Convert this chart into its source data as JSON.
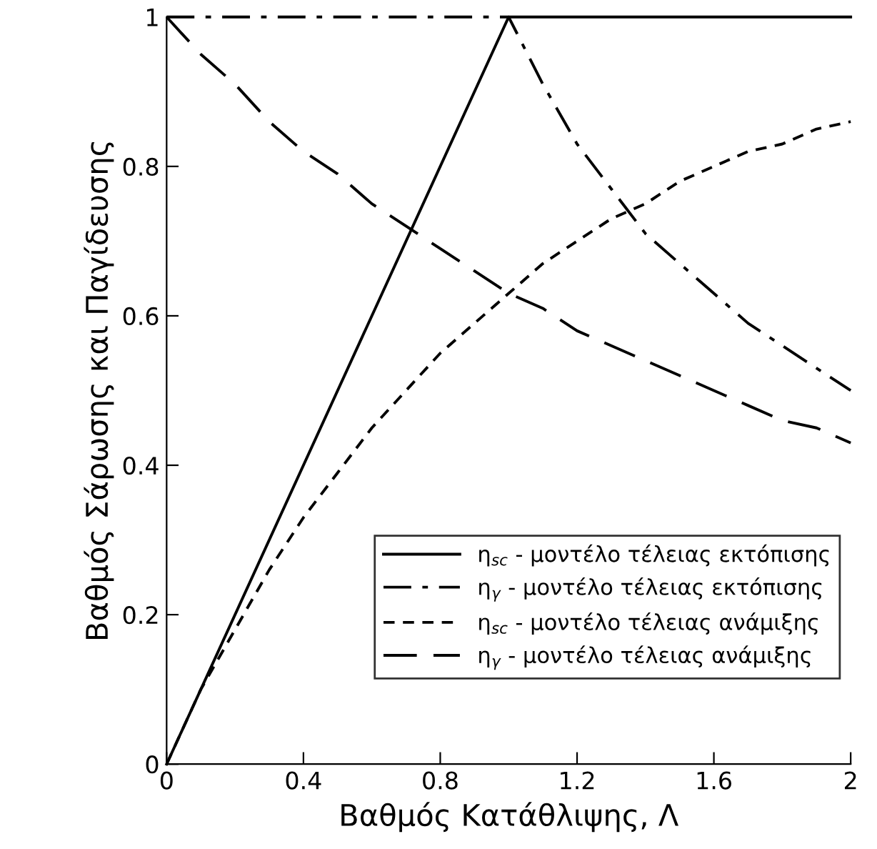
{
  "chart_data": {
    "type": "line",
    "xlabel": "Βαθμός Κατάθλιψης, Λ",
    "ylabel": "Βαθμός Σάρωσης και Παγίδευσης",
    "xlim": [
      0,
      2
    ],
    "ylim": [
      0,
      1
    ],
    "xticks": [
      0,
      0.4,
      0.8,
      1.2,
      1.6,
      2
    ],
    "yticks": [
      0,
      0.2,
      0.4,
      0.6,
      0.8,
      1
    ],
    "grid": false,
    "legend": "bottom right",
    "marker": "none",
    "series": [
      {
        "name": "η$_{sc}$ - μοντέλο τέλειας εκτόπισης",
        "color": "#000000",
        "line_style": "solid",
        "x": [
          0,
          1,
          2
        ],
        "values": [
          0,
          1,
          1
        ]
      },
      {
        "name": "η$_{γ}$ - μοντέλο τέλειας εκτόπισης",
        "color": "#000000",
        "line_style": "dashdot",
        "x": [
          0,
          1,
          1.1,
          1.2,
          1.3,
          1.4,
          1.5,
          1.6,
          1.7,
          1.8,
          1.9,
          2
        ],
        "values": [
          1,
          1,
          0.91,
          0.83,
          0.77,
          0.71,
          0.67,
          0.63,
          0.59,
          0.56,
          0.53,
          0.5
        ]
      },
      {
        "name": "η$_{sc}$ - μοντέλο τέλειας ανάμιξης",
        "color": "#000000",
        "line_style": "dashed",
        "x": [
          0,
          0.1,
          0.2,
          0.3,
          0.4,
          0.5,
          0.6,
          0.7,
          0.8,
          0.9,
          1,
          1.1,
          1.2,
          1.3,
          1.4,
          1.5,
          1.6,
          1.7,
          1.8,
          1.9,
          2
        ],
        "values": [
          0,
          0.1,
          0.18,
          0.26,
          0.33,
          0.39,
          0.45,
          0.5,
          0.55,
          0.59,
          0.63,
          0.67,
          0.7,
          0.73,
          0.75,
          0.78,
          0.8,
          0.82,
          0.83,
          0.85,
          0.86
        ]
      },
      {
        "name": "η$_{γ}$ - μοντέλο τέλειας ανάμιξης",
        "color": "#000000",
        "line_style": "longdashed",
        "x": [
          0,
          0.1,
          0.2,
          0.3,
          0.4,
          0.5,
          0.6,
          0.7,
          0.8,
          0.9,
          1,
          1.1,
          1.2,
          1.3,
          1.4,
          1.5,
          1.6,
          1.7,
          1.8,
          1.9,
          2
        ],
        "values": [
          1,
          0.95,
          0.91,
          0.86,
          0.82,
          0.79,
          0.75,
          0.72,
          0.69,
          0.66,
          0.63,
          0.61,
          0.58,
          0.56,
          0.54,
          0.52,
          0.5,
          0.48,
          0.46,
          0.45,
          0.43
        ]
      }
    ]
  }
}
